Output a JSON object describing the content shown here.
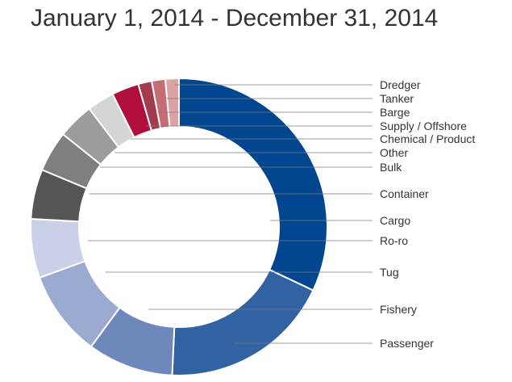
{
  "chart_data": {
    "type": "pie",
    "title": "January 1, 2014 - December 31, 2014",
    "categories": [
      "Cargo",
      "Passenger",
      "Fishery",
      "Tug",
      "Ro-ro",
      "Container",
      "Bulk",
      "Other",
      "Chemical / Product",
      "Supply / Offshore",
      "Barge",
      "Tanker",
      "Dredger"
    ],
    "values": [
      32.5,
      19.0,
      9.5,
      9.5,
      6.5,
      5.5,
      4.5,
      4.0,
      3.0,
      3.0,
      1.5,
      1.5,
      1.5
    ],
    "colors": [
      "#02468f",
      "#3162a2",
      "#6f88bc",
      "#9aaad1",
      "#c9d0e8",
      "#555555",
      "#7f7f7f",
      "#9c9c9c",
      "#d5d5d5",
      "#b00f3d",
      "#a23c4d",
      "#c66c74",
      "#dca3a4"
    ],
    "legend_position": "right",
    "grid": false
  }
}
